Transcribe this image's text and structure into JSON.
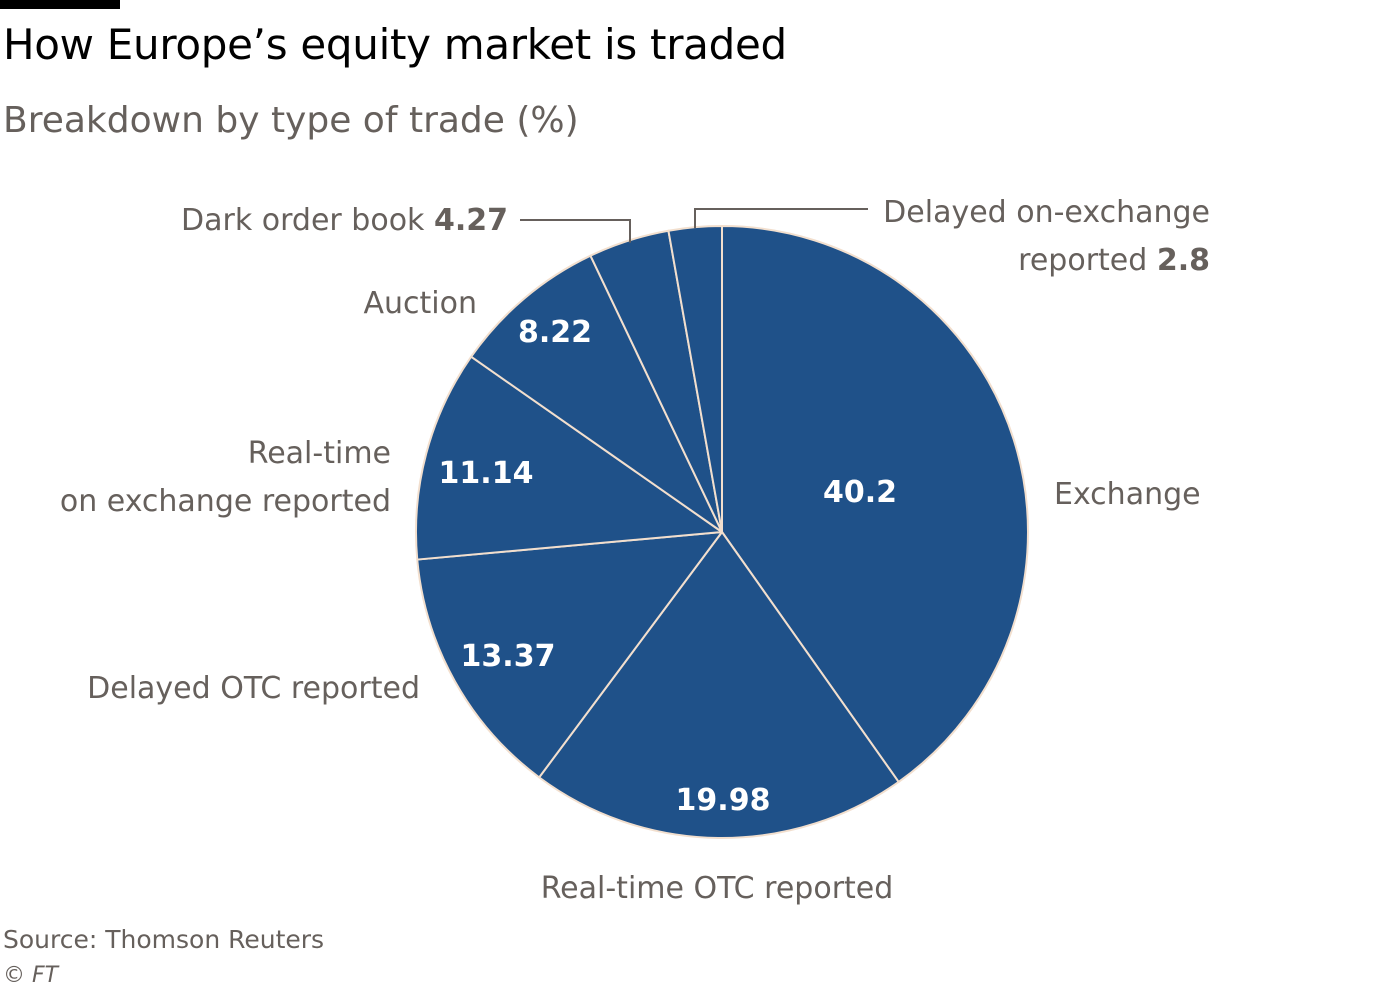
{
  "title": "How Europe’s equity market is traded",
  "subtitle": "Breakdown by type of trade (%)",
  "source": "Source: Thomson Reuters",
  "copyright": "© FT",
  "colors": {
    "slice": "#1f5189",
    "divider": "#f2dfce",
    "label": "#66605c",
    "value": "#ffffff"
  },
  "chart_data": {
    "type": "pie",
    "title": "How Europe’s equity market is traded",
    "subtitle": "Breakdown by type of trade (%)",
    "start": "12 o'clock",
    "direction": "clockwise",
    "slices": [
      {
        "label": "Exchange",
        "value": 40.2,
        "show_value_inside": true
      },
      {
        "label": "Real-time OTC reported",
        "value": 19.98,
        "show_value_inside": true
      },
      {
        "label": "Delayed OTC reported",
        "value": 13.37,
        "show_value_inside": true
      },
      {
        "label": "Real-time on exchange reported",
        "value": 11.14,
        "show_value_inside": true
      },
      {
        "label": "Auction",
        "value": 8.22,
        "show_value_inside": true
      },
      {
        "label": "Dark order book",
        "value": 4.27,
        "show_value_inside": false
      },
      {
        "label": "Delayed on-exchange reported",
        "value": 2.8,
        "show_value_inside": false
      }
    ]
  }
}
